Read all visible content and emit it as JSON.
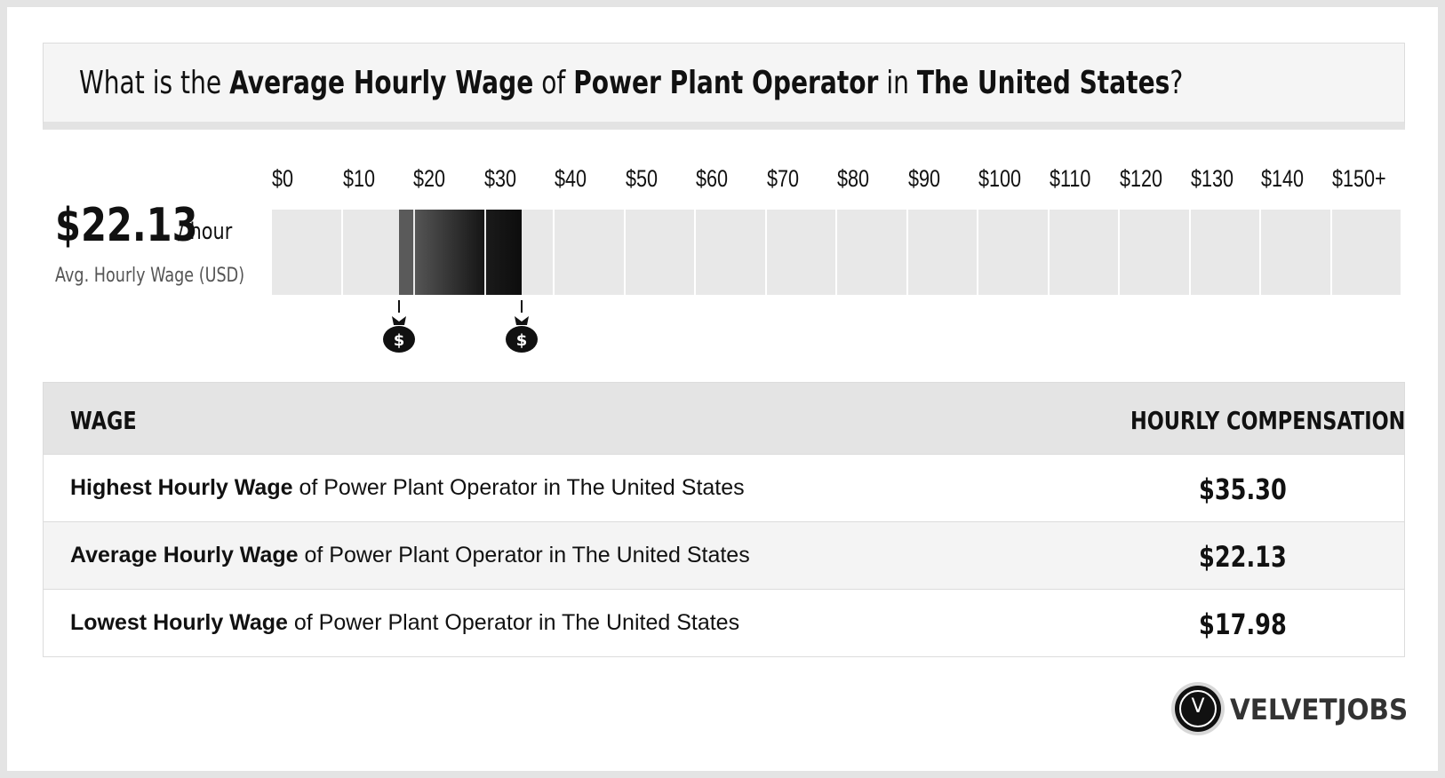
{
  "header": {
    "pre": "What is the ",
    "metric": "Average Hourly Wage",
    "of": " of ",
    "job": "Power Plant Operator",
    "in": " in ",
    "location": "The United States",
    "end": "?"
  },
  "average": {
    "value": "$22.13",
    "unit": "/ hour",
    "caption": "Avg. Hourly Wage (USD)"
  },
  "chart_data": {
    "type": "range-bar",
    "ticks": [
      "$0",
      "$10",
      "$20",
      "$30",
      "$40",
      "$50",
      "$60",
      "$70",
      "$80",
      "$90",
      "$100",
      "$110",
      "$120",
      "$130",
      "$140",
      "$150+"
    ],
    "tick_values": [
      0,
      10,
      20,
      30,
      40,
      50,
      60,
      70,
      80,
      90,
      100,
      110,
      120,
      130,
      140,
      150
    ],
    "low": 17.98,
    "average": 22.13,
    "high": 35.3,
    "xlim": [
      0,
      150
    ],
    "marker_icon": "money-bag-icon",
    "colors": {
      "cell": "#e8e8e8",
      "low_band": "#5a5a5a",
      "mid_start": "#555555",
      "mid_end": "#151515",
      "high_band": "#0d0d0d"
    }
  },
  "table": {
    "headers": [
      "WAGE",
      "HOURLY COMPENSATION"
    ],
    "rows": [
      {
        "bold": "Highest Hourly Wage",
        "rest": " of Power Plant Operator in The United States",
        "value": "$35.30"
      },
      {
        "bold": "Average Hourly Wage",
        "rest": " of Power Plant Operator in The United States",
        "value": "$22.13"
      },
      {
        "bold": "Lowest Hourly Wage",
        "rest": " of Power Plant Operator in The United States",
        "value": "$17.98"
      }
    ]
  },
  "brand": {
    "logo_letter": "V",
    "name": "VELVETJOBS"
  }
}
